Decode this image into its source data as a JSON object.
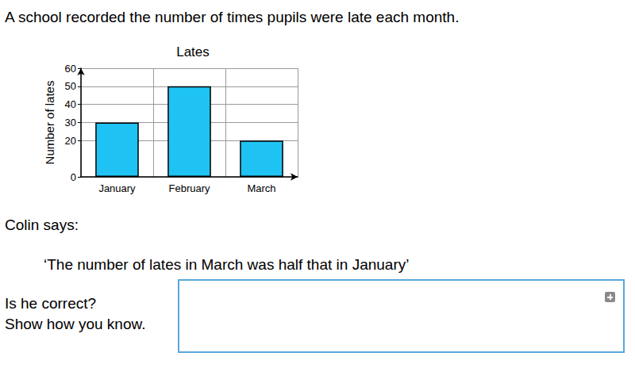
{
  "question": "A school recorded the number of times pupils were late each month.",
  "chart_data": {
    "type": "bar",
    "title": "Lates",
    "y_label": "Number of lates",
    "categories": [
      "January",
      "February",
      "March"
    ],
    "values": [
      30,
      50,
      20
    ],
    "color": "#1fc3f3",
    "ylim": [
      0,
      60
    ],
    "yticks": [
      0,
      20,
      30,
      40,
      50,
      60
    ],
    "grid": true
  },
  "statement": {
    "speaker": "Colin says:",
    "quote": "‘The number of lates in March was half that in January’"
  },
  "prompt": [
    "Is he correct?",
    "Show how you know."
  ]
}
